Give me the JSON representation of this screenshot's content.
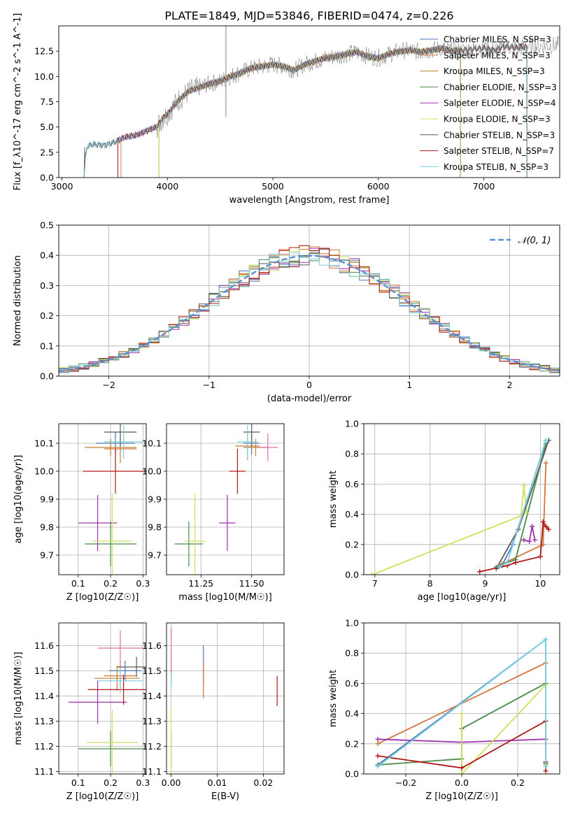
{
  "figure_title": "PLATE=1849, MJD=53846, FIBERID=0474, z=0.226",
  "colors": [
    "#4f78b8",
    "#d4763b",
    "#c08030",
    "#4a8a4a",
    "#a030b0",
    "#cfe05a",
    "#5a5a5a",
    "#b01818",
    "#78d0e0"
  ],
  "legend_entries": [
    "Chabrier MILES, N_SSP=3",
    "Salpeter MILES, N_SSP=3",
    "Kroupa MILES, N_SSP=3",
    "Chabrier ELODIE, N_SSP=3",
    "Salpeter ELODIE, N_SSP=4",
    "Kroupa ELODIE, N_SSP=3",
    "Chabrier STELIB, N_SSP=3",
    "Salpeter STELIB, N_SSP=7",
    "Kroupa STELIB, N_SSP=3"
  ],
  "chart_data": [
    {
      "id": "spectrum",
      "type": "line",
      "xlabel": "wavelength [Angstrom, rest frame]",
      "ylabel": "Flux [f_λ10^-17 erg cm^-2 s^-1 A^-1]",
      "xlim": [
        2970,
        7720
      ],
      "ylim": [
        0,
        15
      ],
      "xticks": [
        3000,
        4000,
        5000,
        6000,
        7000
      ],
      "xtick_labels": [
        "3000",
        "4000",
        "5000",
        "6000",
        "7000"
      ],
      "yticks": [
        0,
        2.5,
        5,
        7.5,
        10,
        12.5
      ],
      "ytick_labels": [
        "0.0",
        "2.5",
        "5.0",
        "7.5",
        "10.0",
        "12.5"
      ],
      "grid": false,
      "legend": "top-right",
      "data_curve": {
        "x": [
          3210,
          3230,
          3300,
          3400,
          3500,
          3600,
          3700,
          3800,
          3900,
          3950,
          4000,
          4100,
          4200,
          4300,
          4400,
          4500,
          4600,
          4700,
          4800,
          4900,
          5000,
          5100,
          5200,
          5300,
          5400,
          5500,
          5600,
          5700,
          5800,
          5900,
          6000,
          6100,
          6200,
          6300,
          6400,
          6500,
          6600,
          6700,
          6800,
          6900,
          7000,
          7100,
          7200,
          7300,
          7400,
          7500,
          7700
        ],
        "y": [
          0,
          3.0,
          3.3,
          3.2,
          3.5,
          4.0,
          4.2,
          4.6,
          5.0,
          5.8,
          6.3,
          7.6,
          8.5,
          8.9,
          9.3,
          9.5,
          10.0,
          10.4,
          10.8,
          11.0,
          11.2,
          11.0,
          10.6,
          11.2,
          11.5,
          11.8,
          12.0,
          12.2,
          12.4,
          12.0,
          11.8,
          12.2,
          12.5,
          12.6,
          12.4,
          12.6,
          12.8,
          12.5,
          12.6,
          12.7,
          12.8,
          12.6,
          13.0,
          12.8,
          12.9,
          13.0,
          13.1
        ]
      },
      "model_ranges": [
        [
          3210,
          7410
        ],
        [
          3530,
          7410
        ],
        [
          3560,
          6780
        ],
        [
          3920,
          6780
        ],
        [
          3530,
          6780
        ],
        [
          3920,
          6780
        ],
        [
          3210,
          7410
        ],
        [
          3530,
          7410
        ],
        [
          3210,
          7410
        ]
      ]
    },
    {
      "id": "residuals",
      "type": "line",
      "xlabel": "(data-model)/error",
      "ylabel": "Normed distribution",
      "xlim": [
        -2.5,
        2.5
      ],
      "ylim": [
        0,
        0.5
      ],
      "xticks": [
        -2,
        -1,
        0,
        1,
        2
      ],
      "xtick_labels": [
        "−2",
        "−1",
        "0",
        "1",
        "2"
      ],
      "yticks": [
        0,
        0.1,
        0.2,
        0.3,
        0.4,
        0.5
      ],
      "ytick_labels": [
        "0.0",
        "0.1",
        "0.2",
        "0.3",
        "0.4",
        "0.5"
      ],
      "grid": true,
      "legend": "top-right",
      "reference_label": "𝒩(0, 1)",
      "bin_width": 0.1
    },
    {
      "id": "age-Z",
      "type": "scatter",
      "xlabel": "Z [log10(Z/Z☉)]",
      "ylabel": "age  [log10(age/yr)]",
      "xlim": [
        0.04,
        0.31
      ],
      "ylim": [
        9.63,
        10.17
      ],
      "xticks": [
        0.1,
        0.2,
        0.3
      ],
      "xtick_labels": [
        "0.1",
        "0.2",
        "0.3"
      ],
      "yticks": [
        9.7,
        9.8,
        9.9,
        10.0,
        10.1
      ],
      "ytick_labels": [
        "9.7",
        "9.8",
        "9.9",
        "10.0",
        "10.1"
      ],
      "grid": true,
      "points": [
        {
          "series": 0,
          "x": 0.215,
          "y": 10.1,
          "xerr": 0.06,
          "yerr": 0.04
        },
        {
          "series": 1,
          "x": 0.23,
          "y": 10.08,
          "xerr": 0.05,
          "yerr": 0.05
        },
        {
          "series": 2,
          "x": 0.2,
          "y": 10.085,
          "xerr": 0.08,
          "yerr": 0.03
        },
        {
          "series": 3,
          "x": 0.2,
          "y": 9.74,
          "xerr": 0.08,
          "yerr": 0.08
        },
        {
          "series": 4,
          "x": 0.16,
          "y": 9.815,
          "xerr": 0.06,
          "yerr": 0.1
        },
        {
          "series": 5,
          "x": 0.205,
          "y": 9.75,
          "xerr": 0.06,
          "yerr": 0.17
        },
        {
          "series": 6,
          "x": 0.23,
          "y": 10.14,
          "xerr": 0.05,
          "yerr": 0.05
        },
        {
          "series": 7,
          "x": 0.215,
          "y": 10.0,
          "xerr": 0.1,
          "yerr": 0.08
        },
        {
          "series": 8,
          "x": 0.24,
          "y": 10.105,
          "xerr": 0.06,
          "yerr": 0.06
        }
      ]
    },
    {
      "id": "age-mass",
      "type": "scatter",
      "xlabel": "mass [log10(M/M☉)]",
      "xlim": [
        11.08,
        11.66
      ],
      "ylim": [
        9.63,
        10.17
      ],
      "xticks": [
        11.25,
        11.5
      ],
      "xtick_labels": [
        "11.25",
        "11.50"
      ],
      "yticks": [
        9.7,
        9.8,
        9.9,
        10.0,
        10.1
      ],
      "ytick_labels": [
        "9.7",
        "9.8",
        "9.9",
        "10.0",
        "10.1"
      ],
      "grid": true,
      "points": [
        {
          "series": 0,
          "x": 11.5,
          "y": 10.1,
          "xerr": 0.04,
          "yerr": 0.04
        },
        {
          "series": 1,
          "x": 11.48,
          "y": 10.09,
          "xerr": 0.06,
          "yerr": 0.05
        },
        {
          "series": 2,
          "x": 11.52,
          "y": 10.085,
          "xerr": 0.06,
          "yerr": 0.03
        },
        {
          "series": 3,
          "x": 11.19,
          "y": 9.74,
          "xerr": 0.07,
          "yerr": 0.08
        },
        {
          "series": 4,
          "x": 11.38,
          "y": 9.815,
          "xerr": 0.04,
          "yerr": 0.1
        },
        {
          "series": 5,
          "x": 11.22,
          "y": 9.75,
          "xerr": 0.05,
          "yerr": 0.17
        },
        {
          "series": 6,
          "x": 11.5,
          "y": 10.14,
          "xerr": 0.04,
          "yerr": 0.05
        },
        {
          "series": 7,
          "x": 11.43,
          "y": 10.0,
          "xerr": 0.04,
          "yerr": 0.08
        },
        {
          "series": 8,
          "x": 11.48,
          "y": 10.105,
          "xerr": 0.05,
          "yerr": 0.06
        },
        {
          "series": 9,
          "x": 11.58,
          "y": 10.085,
          "xerr": 0.05,
          "yerr": 0.05
        }
      ]
    },
    {
      "id": "massweight-age",
      "type": "line",
      "xlabel": "age  [log10(age/yr)]",
      "ylabel": "mass weight",
      "xlim": [
        6.8,
        10.35
      ],
      "ylim": [
        0,
        1
      ],
      "xticks": [
        7,
        8,
        9,
        10
      ],
      "xtick_labels": [
        "7",
        "8",
        "9",
        "10"
      ],
      "yticks": [
        0,
        0.2,
        0.4,
        0.6,
        0.8,
        1.0
      ],
      "ytick_labels": [
        "0.0",
        "0.2",
        "0.4",
        "0.6",
        "0.8",
        "1.0"
      ],
      "grid": true,
      "series": [
        {
          "color": 0,
          "x": [
            9.3,
            9.5,
            10.1
          ],
          "y": [
            0.06,
            0.2,
            0.89
          ]
        },
        {
          "color": 1,
          "x": [
            9.3,
            10.05,
            10.1
          ],
          "y": [
            0.07,
            0.2,
            0.74
          ]
        },
        {
          "color": 3,
          "x": [
            9.2,
            9.55,
            10.1
          ],
          "y": [
            0.05,
            0.1,
            0.87
          ]
        },
        {
          "color": 4,
          "x": [
            9.7,
            9.8,
            9.85,
            9.9
          ],
          "y": [
            0.23,
            0.22,
            0.32,
            0.23
          ]
        },
        {
          "color": 5,
          "x": [
            6.95,
            9.65,
            9.7,
            9.75
          ],
          "y": [
            0.0,
            0.39,
            0.59,
            0.41
          ]
        },
        {
          "color": 6,
          "x": [
            9.2,
            9.6,
            10.15
          ],
          "y": [
            0.04,
            0.3,
            0.89
          ]
        },
        {
          "color": 7,
          "x": [
            8.9,
            9.4,
            9.55,
            10.0,
            10.05,
            10.1,
            10.15
          ],
          "y": [
            0.02,
            0.06,
            0.08,
            0.12,
            0.35,
            0.32,
            0.3
          ]
        },
        {
          "color": 8,
          "x": [
            9.25,
            9.4,
            10.1
          ],
          "y": [
            0.05,
            0.08,
            0.89
          ]
        }
      ]
    },
    {
      "id": "mass-Z",
      "type": "scatter",
      "xlabel": "Z [log10(Z/Z☉)]",
      "ylabel": "mass [log10(M/M☉)]",
      "xlim": [
        0.04,
        0.31
      ],
      "ylim": [
        11.09,
        11.69
      ],
      "xticks": [
        0.1,
        0.2,
        0.3
      ],
      "xtick_labels": [
        "0.1",
        "0.2",
        "0.3"
      ],
      "yticks": [
        11.1,
        11.2,
        11.3,
        11.4,
        11.5,
        11.6
      ],
      "ytick_labels": [
        "11.1",
        "11.2",
        "11.3",
        "11.4",
        "11.5",
        "11.6"
      ],
      "grid": true,
      "points": [
        {
          "series": 0,
          "x": 0.245,
          "y": 11.5,
          "xerr": 0.05,
          "yerr": 0.04
        },
        {
          "series": 1,
          "x": 0.23,
          "y": 11.48,
          "xerr": 0.05,
          "yerr": 0.06
        },
        {
          "series": 2,
          "x": 0.22,
          "y": 11.47,
          "xerr": 0.07,
          "yerr": 0.05
        },
        {
          "series": 3,
          "x": 0.2,
          "y": 11.19,
          "xerr": 0.1,
          "yerr": 0.07
        },
        {
          "series": 4,
          "x": 0.16,
          "y": 11.375,
          "xerr": 0.09,
          "yerr": 0.085
        },
        {
          "series": 5,
          "x": 0.205,
          "y": 11.215,
          "xerr": 0.08,
          "yerr": 0.13
        },
        {
          "series": 6,
          "x": 0.28,
          "y": 11.515,
          "xerr": 0.06,
          "yerr": 0.04
        },
        {
          "series": 7,
          "x": 0.24,
          "y": 11.425,
          "xerr": 0.11,
          "yerr": 0.06
        },
        {
          "series": 8,
          "x": 0.23,
          "y": 11.46,
          "xerr": 0.07,
          "yerr": 0.05
        },
        {
          "series": 9,
          "x": 0.23,
          "y": 11.59,
          "xerr": 0.07,
          "yerr": 0.07
        }
      ]
    },
    {
      "id": "mass-EBV",
      "type": "scatter",
      "xlabel": "E(B-V)",
      "xlim": [
        -0.001,
        0.0245
      ],
      "ylim": [
        11.09,
        11.69
      ],
      "xticks": [
        0.0,
        0.01,
        0.02
      ],
      "xtick_labels": [
        "0.00",
        "0.01",
        "0.02"
      ],
      "yticks": [
        11.1,
        11.2,
        11.3,
        11.4,
        11.5,
        11.6
      ],
      "ytick_labels": [
        "11.1",
        "11.2",
        "11.3",
        "11.4",
        "11.5",
        "11.6"
      ],
      "grid": true,
      "points": [
        {
          "series": 0,
          "x": 0.007,
          "y": 11.52,
          "yerr": 0.08
        },
        {
          "series": 1,
          "x": 0.007,
          "y": 11.46,
          "yerr": 0.07
        },
        {
          "series": 3,
          "x": 0.0,
          "y": 11.19,
          "yerr": 0.07
        },
        {
          "series": 5,
          "x": 0.0,
          "y": 11.22,
          "yerr": 0.13
        },
        {
          "series": 6,
          "x": 0.0,
          "y": 11.5,
          "yerr": 0.05
        },
        {
          "series": 7,
          "x": 0.023,
          "y": 11.42,
          "yerr": 0.06
        },
        {
          "series": 8,
          "x": 0.0,
          "y": 11.48,
          "yerr": 0.05
        },
        {
          "series": 9,
          "x": 0.0,
          "y": 11.58,
          "yerr": 0.09
        }
      ]
    },
    {
      "id": "massweight-Z",
      "type": "line",
      "xlabel": "Z [log10(Z/Z☉)]",
      "ylabel": "mass weight",
      "xlim": [
        -0.35,
        0.35
      ],
      "ylim": [
        0,
        1
      ],
      "xticks": [
        -0.2,
        0.0,
        0.2
      ],
      "xtick_labels": [
        "−0.2",
        "0.0",
        "0.2"
      ],
      "yticks": [
        0,
        0.2,
        0.4,
        0.6,
        0.8,
        1.0
      ],
      "ytick_labels": [
        "0.0",
        "0.2",
        "0.4",
        "0.6",
        "0.8",
        "1.0"
      ],
      "grid": true,
      "series": [
        {
          "color": 0,
          "x": [
            -0.3,
            0.3,
            0.3
          ],
          "y": [
            0.06,
            0.89,
            0.06
          ]
        },
        {
          "color": 1,
          "x": [
            -0.3,
            0.3,
            0.3
          ],
          "y": [
            0.2,
            0.735,
            0.07
          ]
        },
        {
          "color": 3,
          "x": [
            -0.3,
            0.0,
            0.0,
            0.3,
            0.3
          ],
          "y": [
            0.06,
            0.1,
            0.3,
            0.6,
            0.07
          ]
        },
        {
          "color": 4,
          "x": [
            -0.3,
            0.0,
            0.3
          ],
          "y": [
            0.23,
            0.21,
            0.23
          ]
        },
        {
          "color": 5,
          "x": [
            0.0,
            0.0,
            0.3,
            0.3
          ],
          "y": [
            0.4,
            0.0,
            0.59,
            0.06
          ]
        },
        {
          "color": 7,
          "x": [
            -0.3,
            0.0,
            0.3,
            0.3,
            0.3
          ],
          "y": [
            0.12,
            0.04,
            0.35,
            0.08,
            0.02
          ]
        },
        {
          "color": 8,
          "x": [
            -0.3,
            0.3,
            0.3
          ],
          "y": [
            0.05,
            0.89,
            0.05
          ]
        }
      ]
    }
  ]
}
